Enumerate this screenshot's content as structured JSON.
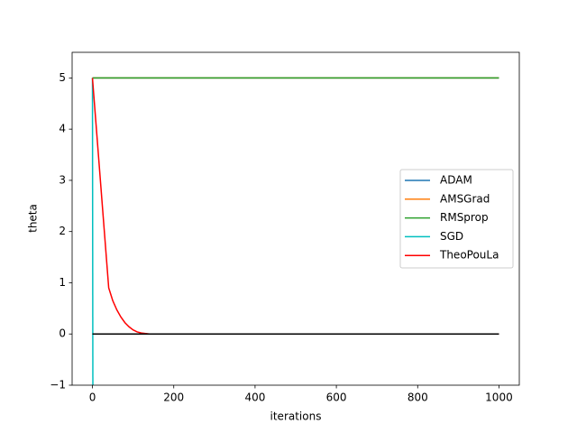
{
  "chart_data": {
    "type": "line",
    "x_label": "iterations",
    "y_label": "theta",
    "xlim": [
      -50,
      1050
    ],
    "ylim": [
      -1,
      5.5
    ],
    "xticks": [
      0,
      200,
      400,
      600,
      800,
      1000
    ],
    "yticks": [
      {
        "value": -1,
        "label": "−1"
      },
      0,
      1,
      2,
      3,
      4,
      5
    ],
    "legend": "right",
    "series": [
      {
        "name": "ADAM",
        "color": "#1f77b4",
        "x": [
          0,
          1000
        ],
        "values": [
          5,
          5
        ]
      },
      {
        "name": "AMSGrad",
        "color": "#ff7f0e",
        "x": [
          0,
          1000
        ],
        "values": [
          5,
          5
        ]
      },
      {
        "name": "RMSprop",
        "color": "#2ca02c",
        "x": [
          0,
          1000
        ],
        "values": [
          5,
          5
        ]
      },
      {
        "name": "SGD",
        "color": "#00bfbf",
        "x": [
          0,
          1
        ],
        "values": [
          5,
          -1
        ]
      },
      {
        "name": "TheoPouLa",
        "color": "#ff0000",
        "x": [
          0,
          40,
          50,
          60,
          70,
          80,
          90,
          100,
          110,
          120,
          140,
          1000
        ],
        "values": [
          5,
          0.9,
          0.65,
          0.47,
          0.33,
          0.22,
          0.14,
          0.08,
          0.04,
          0.02,
          0,
          0
        ]
      },
      {
        "color": "#000000",
        "x": [
          0,
          1000
        ],
        "values": [
          0,
          0
        ]
      }
    ]
  }
}
